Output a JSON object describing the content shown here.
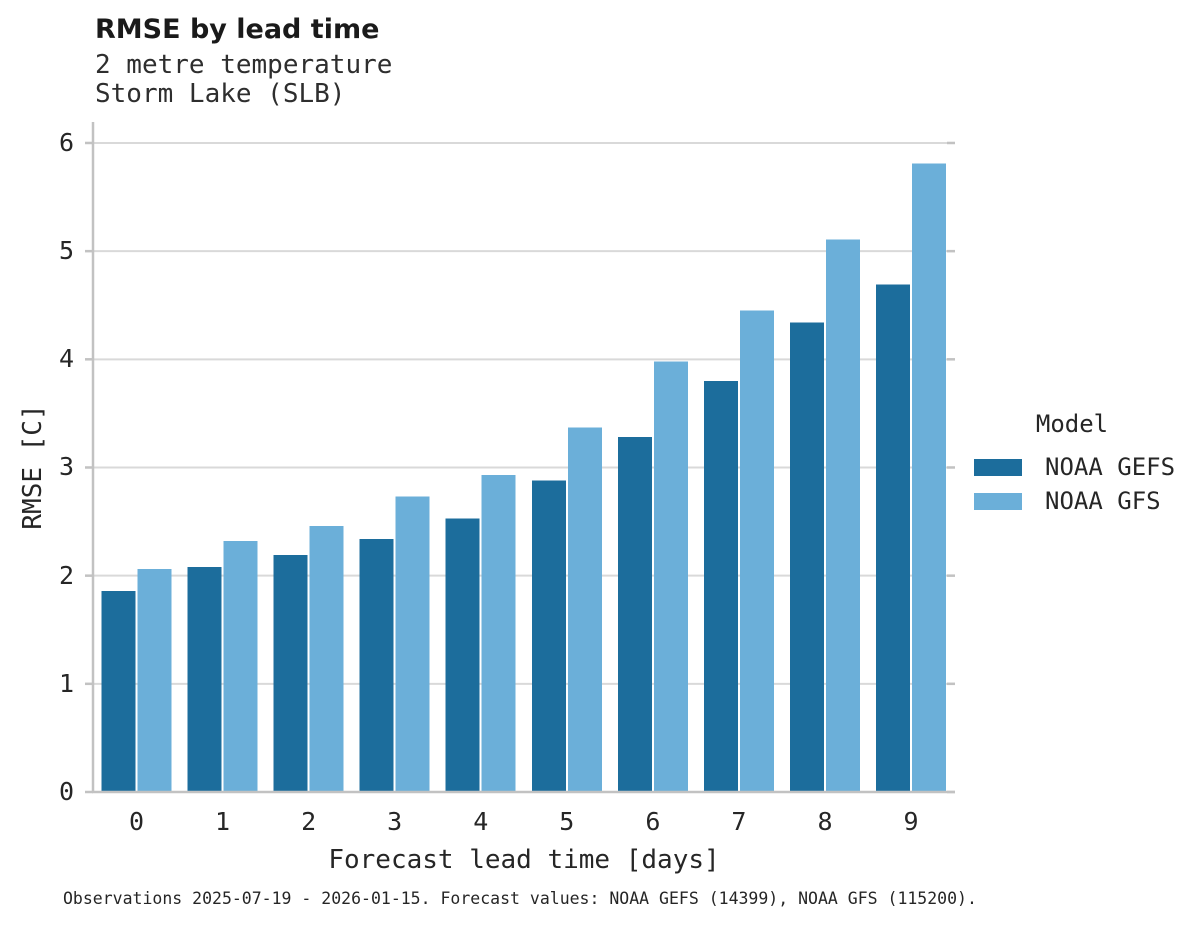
{
  "header": {
    "title": "RMSE by lead time",
    "subtitle_line1": "2 metre temperature",
    "subtitle_line2": "Storm Lake (SLB)"
  },
  "legend": {
    "title": "Model",
    "entries": [
      {
        "label": "NOAA GEFS",
        "color": "#1c6d9c"
      },
      {
        "label": "NOAA GFS",
        "color": "#6bafd9"
      }
    ]
  },
  "footer": {
    "note": "Observations 2025-07-19 - 2026-01-15. Forecast values: NOAA GEFS (14399), NOAA GFS (115200)."
  },
  "chart_data": {
    "type": "bar",
    "title": "RMSE by lead time",
    "subtitle": [
      "2 metre temperature",
      "Storm Lake (SLB)"
    ],
    "xlabel": "Forecast lead time [days]",
    "ylabel": "RMSE [C]",
    "categories": [
      "0",
      "1",
      "2",
      "3",
      "4",
      "5",
      "6",
      "7",
      "8",
      "9"
    ],
    "series": [
      {
        "name": "NOAA GEFS",
        "color": "#1c6d9c",
        "values": [
          1.86,
          2.08,
          2.19,
          2.34,
          2.53,
          2.88,
          3.28,
          3.8,
          4.34,
          4.69
        ]
      },
      {
        "name": "NOAA GFS",
        "color": "#6bafd9",
        "values": [
          2.06,
          2.32,
          2.46,
          2.73,
          2.93,
          3.37,
          3.98,
          4.45,
          5.11,
          5.81
        ]
      }
    ],
    "ylim": [
      0,
      6.2
    ],
    "yticks": [
      0,
      1,
      2,
      3,
      4,
      5,
      6
    ],
    "grid": true,
    "grid_color": "#d9d9d9",
    "axis_color": "#c2c2c2",
    "legend_position": "right",
    "legend_title": "Model"
  }
}
